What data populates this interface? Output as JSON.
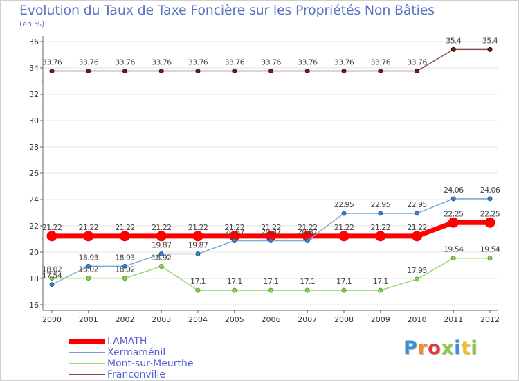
{
  "chart_data": {
    "type": "line",
    "title": "Evolution du Taux de Taxe Foncière sur les Propriétés Non Bâties",
    "ylabel": "(en %)",
    "xlabel": "",
    "ylim": [
      16,
      36
    ],
    "yticks": [
      16,
      18,
      20,
      22,
      24,
      26,
      28,
      30,
      32,
      34,
      36
    ],
    "categories": [
      "2000",
      "2001",
      "2002",
      "2003",
      "2004",
      "2005",
      "2006",
      "2007",
      "2008",
      "2009",
      "2010",
      "2011",
      "2012"
    ],
    "series": [
      {
        "name": "LAMATH",
        "color": "#ff0000",
        "values": [
          21.22,
          21.22,
          21.22,
          21.22,
          21.22,
          21.22,
          21.22,
          21.22,
          21.22,
          21.22,
          21.22,
          22.25,
          22.25
        ],
        "labels": [
          "21.22",
          "21.22",
          "21.22",
          "21.22",
          "21.22",
          "21.22",
          "21.22",
          "21.22",
          "21.22",
          "21.22",
          "21.22",
          "22.25",
          "22.25"
        ]
      },
      {
        "name": "Xermaménil",
        "color": "#6fa8d8",
        "values": [
          17.54,
          18.93,
          18.93,
          19.87,
          19.87,
          20.87,
          20.87,
          20.87,
          22.95,
          22.95,
          22.95,
          24.06,
          24.06
        ],
        "labels": [
          "17.54",
          "18.93",
          "18.93",
          "19.87",
          "19.87",
          "20.87",
          "20.87",
          "20.87",
          "22.95",
          "22.95",
          "22.95",
          "24.06",
          "24.06"
        ]
      },
      {
        "name": "Mont-sur-Meurthe",
        "color": "#99dd66",
        "values": [
          18.02,
          18.02,
          18.02,
          18.92,
          17.1,
          17.1,
          17.1,
          17.1,
          17.1,
          17.1,
          17.95,
          19.54,
          19.54
        ],
        "labels": [
          "18.02",
          "18.02",
          "18.02",
          "18.92",
          "17.1",
          "17.1",
          "17.1",
          "17.1",
          "17.1",
          "17.1",
          "17.95",
          "19.54",
          "19.54"
        ]
      },
      {
        "name": "Franconville",
        "color": "#8b4a4a",
        "values": [
          33.76,
          33.76,
          33.76,
          33.76,
          33.76,
          33.76,
          33.76,
          33.76,
          33.76,
          33.76,
          33.76,
          35.4,
          35.4
        ],
        "labels": [
          "33.76",
          "33.76",
          "33.76",
          "33.76",
          "33.76",
          "33.76",
          "33.76",
          "33.76",
          "33.76",
          "33.76",
          "33.76",
          "35.4",
          "35.4"
        ]
      }
    ]
  },
  "logo": {
    "letters": [
      "P",
      "r",
      "o",
      "x",
      "i",
      "t",
      "i"
    ]
  }
}
